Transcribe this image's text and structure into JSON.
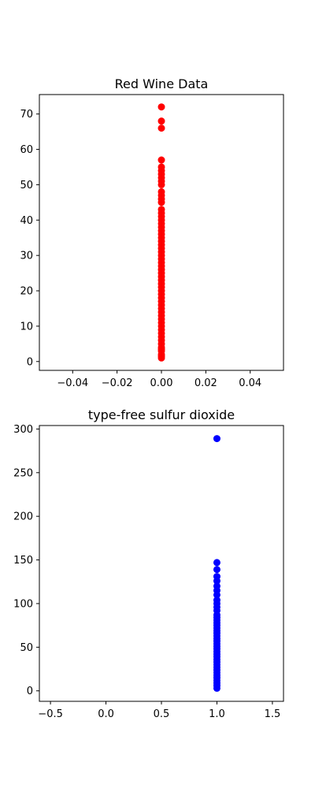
{
  "chart_data": [
    {
      "type": "scatter",
      "title": "Red Wine Data",
      "xlabel": "",
      "ylabel": "",
      "color": "#ff0000",
      "xlim": [
        -0.055,
        0.055
      ],
      "ylim": [
        -2.5,
        75.5
      ],
      "x_ticks": [
        -0.04,
        -0.02,
        0.0,
        0.02,
        0.04
      ],
      "x_tick_labels": [
        "−0.04",
        "−0.02",
        "0.00",
        "0.02",
        "0.04"
      ],
      "y_ticks": [
        0,
        10,
        20,
        30,
        40,
        50,
        60,
        70
      ],
      "y_tick_labels": [
        "0",
        "10",
        "20",
        "30",
        "40",
        "50",
        "60",
        "70"
      ],
      "points": {
        "x": [
          0,
          0,
          0,
          0,
          0,
          0,
          0,
          0,
          0,
          0,
          0,
          0,
          0,
          0,
          0,
          0,
          0,
          0,
          0,
          0,
          0,
          0,
          0,
          0,
          0,
          0,
          0,
          0,
          0,
          0,
          0,
          0,
          0,
          0,
          0,
          0,
          0,
          0,
          0,
          0,
          0,
          0,
          0,
          0,
          0,
          0,
          0,
          0,
          0,
          0,
          0,
          0,
          0,
          0,
          0,
          0,
          0,
          0,
          0
        ],
        "y": [
          1,
          2,
          3,
          4,
          5,
          6,
          7,
          8,
          9,
          10,
          11,
          12,
          13,
          14,
          15,
          16,
          17,
          18,
          19,
          20,
          21,
          22,
          23,
          24,
          25,
          26,
          27,
          28,
          29,
          30,
          31,
          32,
          33,
          34,
          35,
          36,
          37,
          38,
          39,
          40,
          41,
          42,
          43,
          45,
          46,
          47,
          48,
          50,
          51,
          52,
          53,
          54,
          55,
          57,
          66,
          68,
          72,
          1.5,
          3.5
        ]
      },
      "grid": false
    },
    {
      "type": "scatter",
      "title": "type-free sulfur dioxide",
      "xlabel": "",
      "ylabel": "",
      "color": "#0000ff",
      "xlim": [
        -0.6,
        1.6
      ],
      "ylim": [
        -12,
        304
      ],
      "x_ticks": [
        -0.5,
        0.0,
        0.5,
        1.0,
        1.5
      ],
      "x_tick_labels": [
        "−0.5",
        "0.0",
        "0.5",
        "1.0",
        "1.5"
      ],
      "y_ticks": [
        0,
        50,
        100,
        150,
        200,
        250,
        300
      ],
      "y_tick_labels": [
        "0",
        "50",
        "100",
        "150",
        "200",
        "250",
        "300"
      ],
      "points": {
        "x": [
          1,
          1,
          1,
          1,
          1,
          1,
          1,
          1,
          1,
          1,
          1,
          1,
          1,
          1,
          1,
          1,
          1,
          1,
          1,
          1,
          1,
          1,
          1,
          1,
          1,
          1,
          1,
          1,
          1,
          1,
          1,
          1,
          1,
          1,
          1,
          1,
          1,
          1
        ],
        "y": [
          3,
          6,
          9,
          12,
          15,
          18,
          21,
          24,
          27,
          30,
          33,
          36,
          39,
          42,
          45,
          48,
          51,
          54,
          57,
          60,
          63,
          66,
          69,
          72,
          75,
          78,
          81,
          84,
          87,
          92,
          96,
          100,
          104,
          110,
          115,
          120,
          126,
          131
        ]
      },
      "extra_points": {
        "x": [
          1,
          1,
          1
        ],
        "y": [
          139,
          147,
          289
        ]
      },
      "grid": false
    }
  ]
}
